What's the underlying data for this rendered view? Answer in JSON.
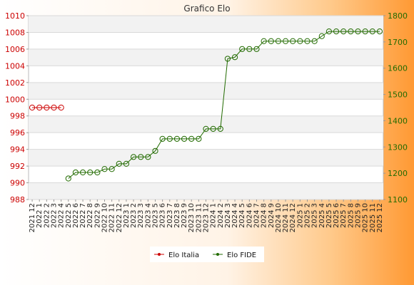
{
  "chart_data": {
    "type": "line",
    "title": "Grafico Elo",
    "categories": [
      "2021 12",
      "2022 1",
      "2022 2",
      "2022 3",
      "2022 4",
      "2022 5",
      "2022 6",
      "2022 7",
      "2022 8",
      "2022 9",
      "2022 10",
      "2022 11",
      "2022 12",
      "2023 1",
      "2023 2",
      "2023 3",
      "2023 4",
      "2023 5",
      "2023 6",
      "2023 7",
      "2023 8",
      "2023 9",
      "2023 10",
      "2023 11",
      "2023 12",
      "2024 1",
      "2024 2",
      "2024 3",
      "2024 4",
      "2024 5",
      "2024 6",
      "2024 7",
      "2024 8",
      "2024 9",
      "2024 10",
      "2024 11",
      "2024 12",
      "2025 1",
      "2025 2",
      "2025 3",
      "2025 4",
      "2025 5",
      "2025 6",
      "2025 7",
      "2025 8",
      "2025 9",
      "2025 10",
      "2025 11",
      "2025 12"
    ],
    "y_left": {
      "ticks": [
        "988",
        "990",
        "992",
        "994",
        "996",
        "998",
        "1000",
        "1002",
        "1004",
        "1006",
        "1008",
        "1010"
      ],
      "range": [
        988,
        1010
      ],
      "color": "#cc0000"
    },
    "y_right": {
      "ticks": [
        "1100",
        "1200",
        "1300",
        "1400",
        "1500",
        "1600",
        "1700",
        "1800"
      ],
      "range": [
        1100,
        1800
      ],
      "color": "#226b00"
    },
    "grid": true,
    "legend_position": "bottom",
    "series": [
      {
        "name": "Elo Italia",
        "axis": "left",
        "color": "#cc0000",
        "values": [
          999,
          999,
          999,
          999,
          999,
          null,
          null,
          null,
          null,
          null,
          null,
          null,
          null,
          null,
          null,
          null,
          null,
          null,
          null,
          null,
          null,
          null,
          null,
          null,
          null,
          null,
          null,
          null,
          null,
          null,
          null,
          null,
          null,
          null,
          null,
          null,
          null,
          null,
          null,
          null,
          null,
          null,
          null,
          null,
          null,
          null,
          null,
          null,
          null
        ]
      },
      {
        "name": "Elo FIDE",
        "axis": "right",
        "color": "#226b00",
        "values": [
          null,
          null,
          null,
          null,
          null,
          1180,
          1203,
          1203,
          1203,
          1203,
          1216,
          1216,
          1236,
          1236,
          1262,
          1262,
          1262,
          1285,
          1331,
          1331,
          1331,
          1331,
          1331,
          1331,
          1369,
          1369,
          1369,
          1636,
          1642,
          1673,
          1673,
          1673,
          1703,
          1703,
          1703,
          1703,
          1703,
          1703,
          1703,
          1703,
          1722,
          1740,
          1740,
          1740,
          1740,
          1740,
          1740,
          1740,
          1740
        ]
      }
    ]
  }
}
